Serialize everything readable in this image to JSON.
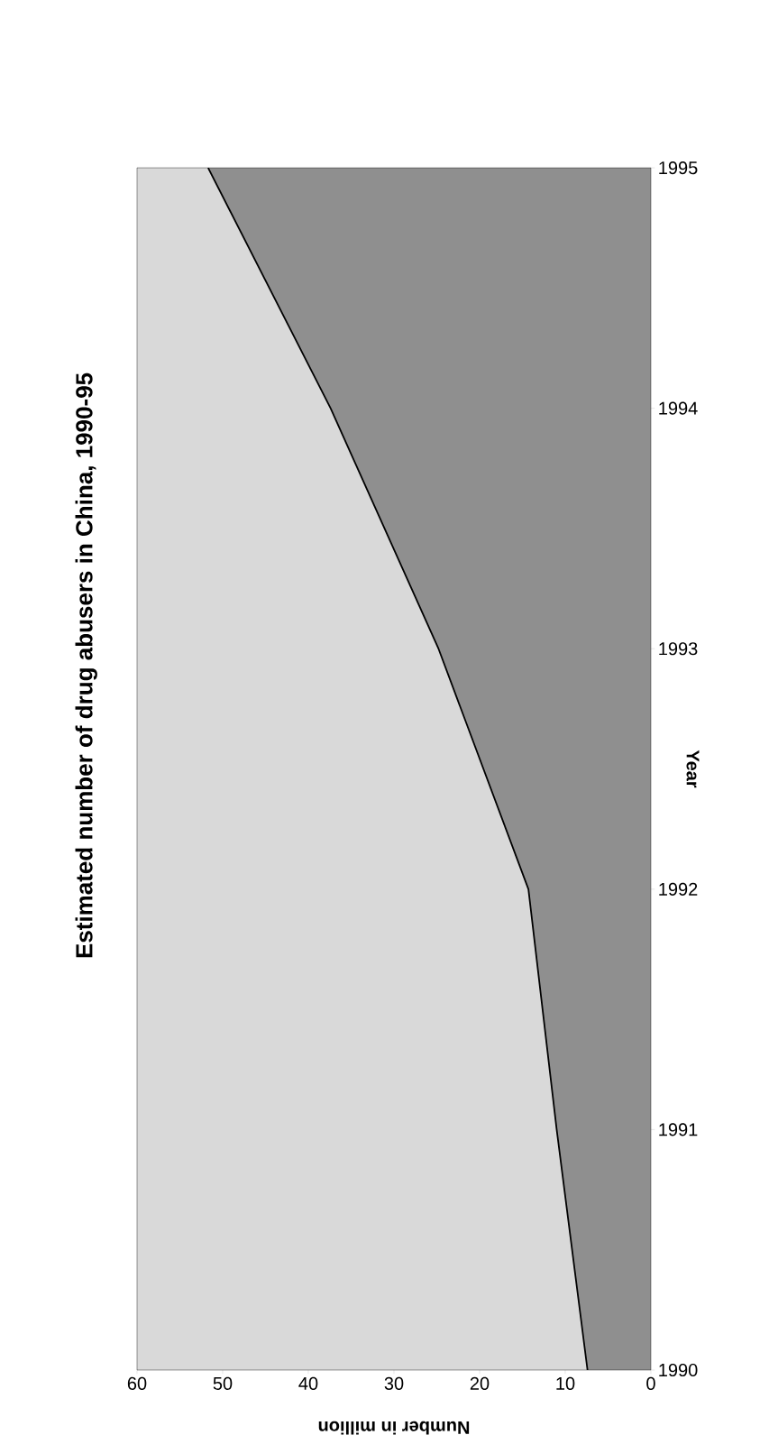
{
  "chart_data": {
    "type": "area",
    "orientation": "horizontal",
    "title": "Estimated number of drug abusers in China, 1990-95",
    "xlabel": "Number in million",
    "ylabel": "Year",
    "categories": [
      "1995",
      "1994",
      "1993",
      "1992",
      "1991",
      "1990"
    ],
    "series": [
      {
        "color": "#8f8f8f",
        "values": [
          51.7,
          37.4,
          24.8,
          14.3,
          11,
          7.4
        ]
      }
    ],
    "xlim": [
      60,
      0
    ],
    "xticks": [
      0,
      10,
      20,
      30,
      40,
      50,
      60
    ],
    "grid": false
  }
}
